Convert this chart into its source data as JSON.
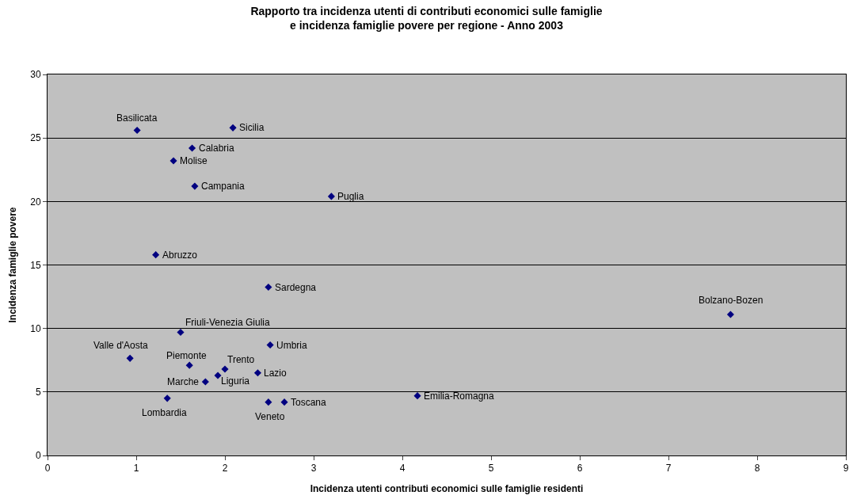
{
  "chart_data": {
    "type": "scatter",
    "title": "Rapporto tra incidenza utenti di contributi economici sulle famiglie\ne incidenza famiglie povere per regione - Anno 2003",
    "xlabel": "Incidenza utenti contributi economici sulle famiglie residenti",
    "ylabel": "Incidenza famiglie povere",
    "series": [
      {
        "color": "#000080",
        "x": [
          1.01,
          2.09,
          1.63,
          1.42,
          1.66,
          3.2,
          1.22,
          2.49,
          7.7,
          1.5,
          0.93,
          2.51,
          1.6,
          2.0,
          1.92,
          2.37,
          1.78,
          1.35,
          2.49,
          2.67,
          4.17
        ],
        "values": [
          25.6,
          25.8,
          24.2,
          23.2,
          21.2,
          20.4,
          15.8,
          13.25,
          11.1,
          9.7,
          7.65,
          8.7,
          7.1,
          6.8,
          6.3,
          6.5,
          5.8,
          4.5,
          4.2,
          4.2,
          4.7
        ]
      }
    ],
    "annotations": [
      {
        "text": "Basilicata",
        "x": 1.01,
        "y": 25.6
      },
      {
        "text": "Sicilia",
        "x": 2.09,
        "y": 25.8
      },
      {
        "text": "Calabria",
        "x": 1.63,
        "y": 24.2
      },
      {
        "text": "Molise",
        "x": 1.42,
        "y": 23.2
      },
      {
        "text": "Campania",
        "x": 1.66,
        "y": 21.2
      },
      {
        "text": "Puglia",
        "x": 3.2,
        "y": 20.4
      },
      {
        "text": "Abruzzo",
        "x": 1.22,
        "y": 15.8
      },
      {
        "text": "Sardegna",
        "x": 2.49,
        "y": 13.25
      },
      {
        "text": "Bolzano-Bozen",
        "x": 7.7,
        "y": 11.1
      },
      {
        "text": "Friuli-Venezia Giulia",
        "x": 1.5,
        "y": 9.7
      },
      {
        "text": "Valle d'Aosta",
        "x": 0.93,
        "y": 7.65
      },
      {
        "text": "Umbria",
        "x": 2.51,
        "y": 8.7
      },
      {
        "text": "Piemonte",
        "x": 1.6,
        "y": 7.1
      },
      {
        "text": "Trento",
        "x": 2.0,
        "y": 6.8
      },
      {
        "text": "Liguria",
        "x": 1.92,
        "y": 6.3
      },
      {
        "text": "Lazio",
        "x": 2.37,
        "y": 6.5
      },
      {
        "text": "Marche",
        "x": 1.78,
        "y": 5.8
      },
      {
        "text": "Lombardia",
        "x": 1.35,
        "y": 4.5
      },
      {
        "text": "Veneto",
        "x": 2.49,
        "y": 4.2
      },
      {
        "text": "Toscana",
        "x": 2.67,
        "y": 4.2
      },
      {
        "text": "Emilia-Romagna",
        "x": 4.17,
        "y": 4.7
      }
    ],
    "xlim": [
      0,
      9
    ],
    "xticks": [
      0,
      1,
      2,
      3,
      4,
      5,
      6,
      7,
      8,
      9
    ],
    "ylim": [
      0,
      30
    ],
    "yticks": [
      0,
      5,
      10,
      15,
      20,
      25,
      30
    ],
    "grid": "y",
    "marker": "diamond"
  }
}
